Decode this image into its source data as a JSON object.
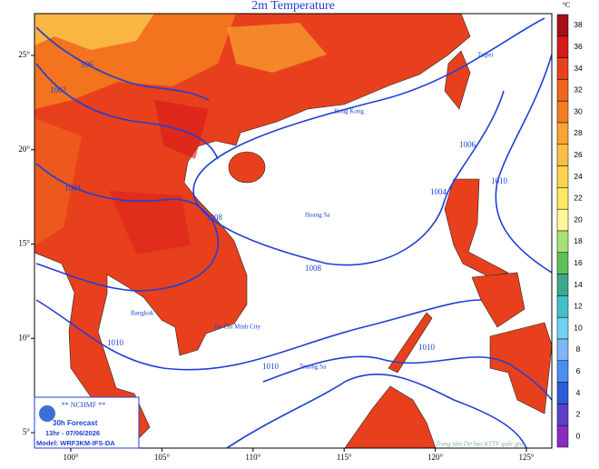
{
  "title": "2m Temperature",
  "colorbar": {
    "unit": "°C",
    "ticks": [
      38,
      36,
      34,
      32,
      30,
      28,
      26,
      24,
      22,
      20,
      18,
      16,
      14,
      12,
      10,
      8,
      6,
      4,
      2,
      0
    ],
    "colors": [
      "#a50f15",
      "#d7191c",
      "#e8401c",
      "#f0641e",
      "#f47d20",
      "#f8a531",
      "#fbbe47",
      "#fdd34d",
      "#fde860",
      "#fff79a",
      "#a6e07a",
      "#5cc15a",
      "#3aa98c",
      "#3fc1c9",
      "#6fd2f0",
      "#7fb6f5",
      "#4a8ff0",
      "#2e5bd8",
      "#5b3fc8",
      "#8a2bc2"
    ]
  },
  "x_ticks": [
    {
      "value": 100,
      "label": "100°"
    },
    {
      "value": 105,
      "label": "105°"
    },
    {
      "value": 110,
      "label": "110°"
    },
    {
      "value": 115,
      "label": "115°"
    },
    {
      "value": 120,
      "label": "120°"
    },
    {
      "value": 125,
      "label": "125°"
    }
  ],
  "y_ticks": [
    {
      "value": 25,
      "label": "25°"
    },
    {
      "value": 20,
      "label": "20°"
    },
    {
      "value": 15,
      "label": "15°"
    },
    {
      "value": 10,
      "label": "10°"
    },
    {
      "value": 5,
      "label": "5°"
    }
  ],
  "isobar_labels": [
    "996",
    "1002",
    "1004",
    "1004",
    "1006",
    "1008",
    "1008",
    "1010",
    "1010",
    "1010",
    "1010"
  ],
  "places": [
    "Taipei",
    "Hong Kong",
    "Hoang Sa",
    "Truong Sa",
    "Ho Chi Minh City",
    "Bangkok"
  ],
  "info": {
    "agency": "** NCHMF **",
    "forecast": "30h Forecast",
    "time": "13hr - 07/06/2026",
    "model": "Model: WRF3KM-IFS-DA"
  },
  "credit": "Trung tâm Dự báo KTTV quốc gia"
}
